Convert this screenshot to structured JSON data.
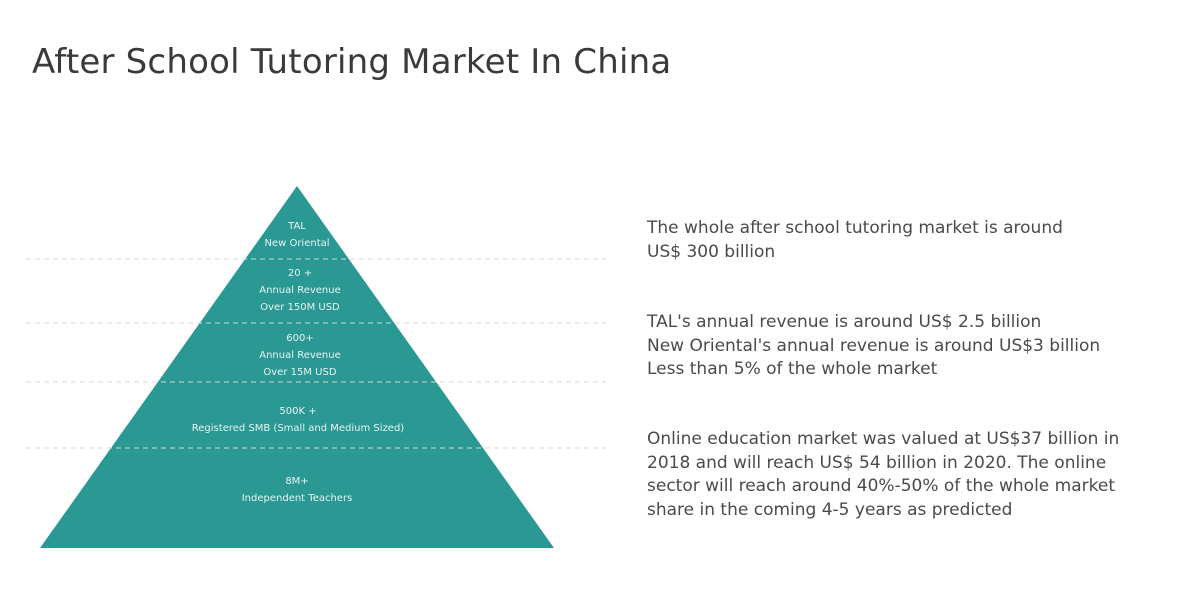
{
  "title": "After School Tutoring Market In China",
  "colors": {
    "pyramid_fill": "#2a9893",
    "divider": "#d9d9d9",
    "label_text": "#e8f4f3",
    "note_text": "#4a4a4a"
  },
  "pyramid": {
    "tiers": [
      {
        "lines": [
          "TAL",
          "New Oriental"
        ]
      },
      {
        "lines": [
          "20 +",
          "Annual Revenue",
          "Over 150M USD"
        ]
      },
      {
        "lines": [
          "600+",
          "Annual Revenue",
          "Over 15M USD"
        ]
      },
      {
        "lines": [
          "500K +",
          "Registered SMB (Small and Medium Sized)"
        ]
      },
      {
        "lines": [
          "8M+",
          "Independent  Teachers"
        ]
      }
    ]
  },
  "notes": [
    {
      "lines": [
        "The whole after school tutoring market is around",
        "US$ 300 billion"
      ]
    },
    {
      "lines": [
        "TAL's  annual revenue is around US$ 2.5 billion",
        "New Oriental's annual revenue is around US$3 billion",
        "Less than 5% of the whole market"
      ]
    },
    {
      "lines": [
        "Online education market was valued at US$37 billion in",
        "2018 and will reach US$ 54 billion in 2020. The online",
        "sector will reach around 40%-50% of the whole market",
        "share in the coming 4-5 years as predicted"
      ]
    }
  ]
}
